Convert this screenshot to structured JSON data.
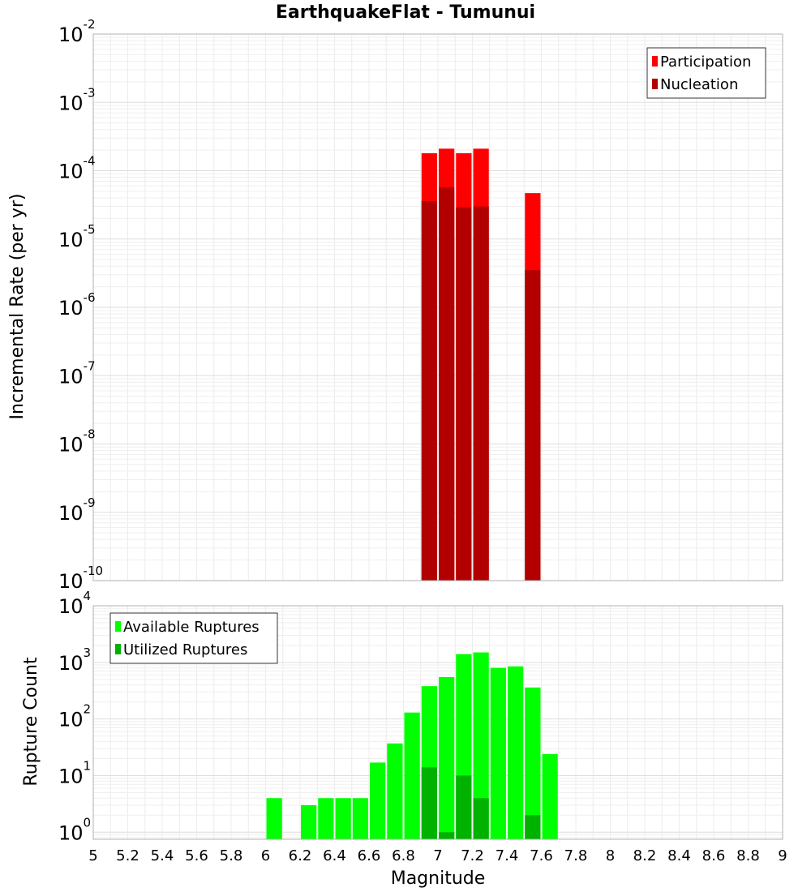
{
  "chart_data": [
    {
      "type": "bar",
      "title": "EarthquakeFlat - Tumunui",
      "xlabel": "",
      "ylabel": "Incremental Rate (per yr)",
      "xlim": [
        5,
        9
      ],
      "ylim": [
        1e-10,
        0.01
      ],
      "yscale": "log",
      "grid": true,
      "legend_position": "top-right",
      "bin_width": 0.1,
      "series": [
        {
          "name": "Participation",
          "color": "#ff0000",
          "points": [
            {
              "x": 6.95,
              "y": 0.00018
            },
            {
              "x": 7.05,
              "y": 0.00021
            },
            {
              "x": 7.15,
              "y": 0.00018
            },
            {
              "x": 7.25,
              "y": 0.00021
            },
            {
              "x": 7.55,
              "y": 4.7e-05
            }
          ]
        },
        {
          "name": "Nucleation",
          "color": "#b20000",
          "points": [
            {
              "x": 6.95,
              "y": 3.6e-05
            },
            {
              "x": 7.05,
              "y": 5.7e-05
            },
            {
              "x": 7.15,
              "y": 2.9e-05
            },
            {
              "x": 7.25,
              "y": 3e-05
            },
            {
              "x": 7.55,
              "y": 3.5e-06
            }
          ]
        }
      ]
    },
    {
      "type": "bar",
      "title": "",
      "xlabel": "Magnitude",
      "ylabel": "Rupture Count",
      "xlim": [
        5,
        9
      ],
      "ylim": [
        0.75,
        10000
      ],
      "yscale": "log",
      "grid": true,
      "legend_position": "top-left",
      "bin_width": 0.1,
      "series": [
        {
          "name": "Available Ruptures",
          "color": "#00ff00",
          "points": [
            {
              "x": 6.05,
              "y": 4
            },
            {
              "x": 6.25,
              "y": 3
            },
            {
              "x": 6.35,
              "y": 4
            },
            {
              "x": 6.45,
              "y": 4
            },
            {
              "x": 6.55,
              "y": 4
            },
            {
              "x": 6.65,
              "y": 17
            },
            {
              "x": 6.75,
              "y": 37
            },
            {
              "x": 6.85,
              "y": 130
            },
            {
              "x": 6.95,
              "y": 380
            },
            {
              "x": 7.05,
              "y": 550
            },
            {
              "x": 7.15,
              "y": 1400
            },
            {
              "x": 7.25,
              "y": 1500
            },
            {
              "x": 7.35,
              "y": 800
            },
            {
              "x": 7.45,
              "y": 850
            },
            {
              "x": 7.55,
              "y": 360
            },
            {
              "x": 7.65,
              "y": 24
            }
          ]
        },
        {
          "name": "Utilized Ruptures",
          "color": "#00b200",
          "points": [
            {
              "x": 6.95,
              "y": 14
            },
            {
              "x": 7.05,
              "y": 1
            },
            {
              "x": 7.15,
              "y": 10
            },
            {
              "x": 7.25,
              "y": 4
            },
            {
              "x": 7.55,
              "y": 2
            }
          ]
        }
      ],
      "xticks": [
        "5",
        "5.2",
        "5.4",
        "5.6",
        "5.8",
        "6",
        "6.2",
        "6.4",
        "6.6",
        "6.8",
        "7",
        "7.2",
        "7.4",
        "7.6",
        "7.8",
        "8",
        "8.2",
        "8.4",
        "8.6",
        "8.8",
        "9"
      ]
    }
  ]
}
